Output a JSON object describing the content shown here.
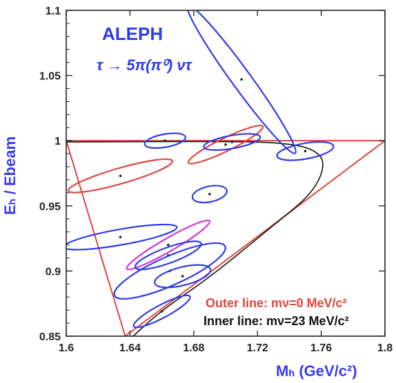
{
  "chart_data": {
    "type": "scatter",
    "title": "",
    "xlabel": "Mₕ (GeV/c²)",
    "ylabel": "Eₕ / Ebeam",
    "xlim": [
      1.6,
      1.8
    ],
    "ylim": [
      0.85,
      1.1
    ],
    "x_ticks": [
      {
        "value": 1.6,
        "label": "1.6"
      },
      {
        "value": 1.64,
        "label": "1.64"
      },
      {
        "value": 1.68,
        "label": "1.68"
      },
      {
        "value": 1.72,
        "label": "1.72"
      },
      {
        "value": 1.76,
        "label": "1.76"
      },
      {
        "value": 1.8,
        "label": "1.8"
      }
    ],
    "y_ticks": [
      {
        "value": 0.85,
        "label": "0.85"
      },
      {
        "value": 0.9,
        "label": "0.9"
      },
      {
        "value": 0.95,
        "label": "0.95"
      },
      {
        "value": 1.0,
        "label": "1"
      },
      {
        "value": 1.05,
        "label": "1.05"
      },
      {
        "value": 1.1,
        "label": "1.1"
      }
    ],
    "annotations": {
      "experiment": "ALEPH",
      "process": "τ → 5π(π⁰) ντ",
      "outer_line_label": "Outer line: mν=0 MeV/c²",
      "inner_line_label": "Inner line: mν=23 MeV/c²"
    },
    "colors": {
      "blue": "#2d3be8",
      "red": "#e0443c",
      "magenta": "#d433d4",
      "black": "#111111",
      "axis_title": "#3a3af0"
    },
    "outer_boundary": [
      [
        1.6,
        1.0
      ],
      [
        1.8,
        1.0
      ],
      [
        1.637,
        0.85
      ]
    ],
    "inner_boundary": [
      [
        1.6,
        0.999
      ],
      [
        1.7,
        0.9995
      ],
      [
        1.735,
        0.9985
      ],
      [
        1.755,
        0.994
      ],
      [
        1.763,
        0.983
      ],
      [
        1.755,
        0.96
      ],
      [
        1.73,
        0.935
      ],
      [
        1.69,
        0.895
      ],
      [
        1.66,
        0.87
      ],
      [
        1.642,
        0.85
      ]
    ],
    "events": [
      {
        "x": 1.71,
        "y": 1.047,
        "rx": 0.006,
        "ry": 0.07,
        "angle_deg": -36,
        "color": "blue"
      },
      {
        "x": 1.634,
        "y": 0.973,
        "rx": 0.034,
        "ry": 0.006,
        "angle_deg": -16,
        "color": "red"
      },
      {
        "x": 1.662,
        "y": 1.0,
        "rx": 0.013,
        "ry": 0.005,
        "angle_deg": -10,
        "color": "blue"
      },
      {
        "x": 1.7,
        "y": 0.997,
        "rx": 0.026,
        "ry": 0.005,
        "angle_deg": -26,
        "color": "red"
      },
      {
        "x": 1.704,
        "y": 0.999,
        "rx": 0.018,
        "ry": 0.005,
        "angle_deg": -10,
        "color": "blue"
      },
      {
        "x": 1.75,
        "y": 0.992,
        "rx": 0.018,
        "ry": 0.006,
        "angle_deg": -10,
        "color": "blue"
      },
      {
        "x": 1.69,
        "y": 0.959,
        "rx": 0.011,
        "ry": 0.006,
        "angle_deg": -12,
        "color": "blue"
      },
      {
        "x": 1.634,
        "y": 0.926,
        "rx": 0.036,
        "ry": 0.006,
        "angle_deg": -10,
        "color": "blue"
      },
      {
        "x": 1.664,
        "y": 0.92,
        "rx": 0.03,
        "ry": 0.005,
        "angle_deg": -30,
        "color": "magenta"
      },
      {
        "x": 1.664,
        "y": 0.912,
        "rx": 0.022,
        "ry": 0.006,
        "angle_deg": -20,
        "color": "blue"
      },
      {
        "x": 1.665,
        "y": 0.9,
        "rx": 0.038,
        "ry": 0.011,
        "angle_deg": -24,
        "color": "blue"
      },
      {
        "x": 1.673,
        "y": 0.896,
        "rx": 0.018,
        "ry": 0.007,
        "angle_deg": -14,
        "color": "blue"
      },
      {
        "x": 1.66,
        "y": 0.869,
        "rx": 0.02,
        "ry": 0.005,
        "angle_deg": -28,
        "color": "blue"
      }
    ]
  }
}
